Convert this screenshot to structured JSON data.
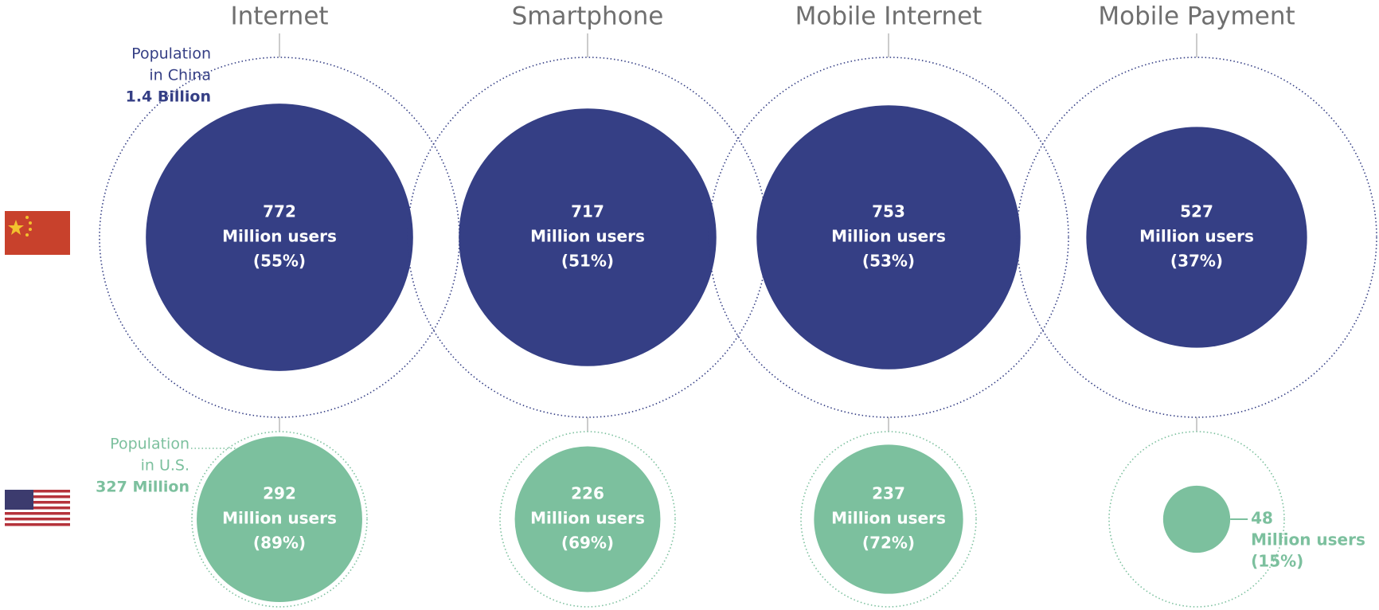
{
  "chart_data": {
    "type": "bubble",
    "categories": [
      "Internet",
      "Smartphone",
      "Mobile Internet",
      "Mobile Payment"
    ],
    "series": [
      {
        "color": "#353f85",
        "values": [
          772,
          717,
          753,
          527
        ],
        "unit": "Million users",
        "shares": [
          55,
          51,
          53,
          37
        ],
        "share_labels": [
          "(55%)",
          "(51%)",
          "(53%)",
          "(37%)"
        ],
        "population_label": [
          "Population",
          "in China"
        ],
        "population": 1400,
        "population_value_label": "1.4 Billion"
      },
      {
        "color": "#7cc09e",
        "values": [
          292,
          226,
          237,
          48
        ],
        "unit": "Million users",
        "shares": [
          89,
          69,
          72,
          15
        ],
        "share_labels": [
          "(89%)",
          "(69%)",
          "(72%)",
          "(15%)"
        ],
        "population_label": [
          "Population",
          "in U.S."
        ],
        "population": 327,
        "population_value_label": "327 Million"
      }
    ]
  }
}
